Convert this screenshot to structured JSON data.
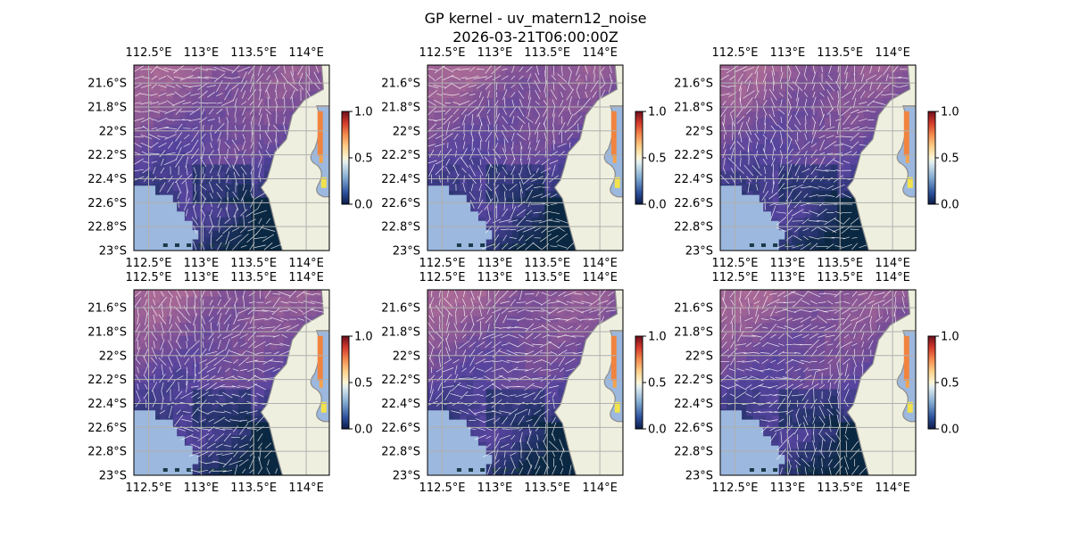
{
  "figure": {
    "title_line1": "GP kernel - uv_matern12_noise",
    "title_line2": "2026-03-21T06:00:00Z"
  },
  "chart_data": {
    "type": "heatmap",
    "layout": "2 rows x 3 columns of map panels",
    "panel_count": 6,
    "lon_ticks": [
      "112.5°E",
      "113°E",
      "113.5°E",
      "114°E"
    ],
    "lon_values": [
      112.5,
      113.0,
      113.5,
      114.0
    ],
    "lat_ticks": [
      "21.6°S",
      "21.8°S",
      "22°S",
      "22.2°S",
      "22.4°S",
      "22.6°S",
      "22.8°S",
      "23°S"
    ],
    "lat_values": [
      -21.6,
      -21.8,
      -22.0,
      -22.2,
      -22.4,
      -22.6,
      -22.8,
      -23.0
    ],
    "lon_range": [
      112.36,
      114.22
    ],
    "lat_range": [
      -23.0,
      -21.45
    ],
    "colorbar": {
      "range": [
        0.0,
        1.0
      ],
      "ticks": [
        "0.0",
        "0.5",
        "1.0"
      ],
      "colormap": "RdYlBu_r"
    },
    "overlay": "uv vector quivers (white arrows) over ocean",
    "colors": {
      "land": "#efefdf",
      "masked_ocean": "#9cb8de",
      "coastline": "#8c8c8c",
      "grid": "#b0b0b0",
      "arrow": "#ffffff"
    }
  }
}
